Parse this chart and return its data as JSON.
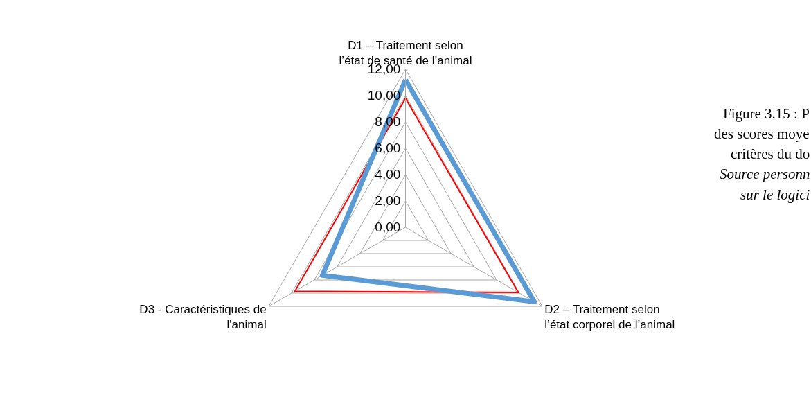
{
  "chart_data": {
    "type": "radar",
    "categories": [
      "D1 – Traitement selon\nl’état de santé de l’animal",
      "D2 – Traitement selon\nl’état corporel de l’animal",
      "D3 - Caractéristiques de\nl'animal"
    ],
    "series": [
      {
        "color": "#ff0000",
        "values": [
          9.8,
          9.9,
          9.7
        ]
      },
      {
        "color": "#5b9bd5",
        "values": [
          11.2,
          11.3,
          7.3
        ]
      }
    ],
    "ylim": [
      0,
      12
    ],
    "yticks": [
      {
        "value": 0,
        "label": "0,00"
      },
      {
        "value": 2,
        "label": "2,00"
      },
      {
        "value": 4,
        "label": "4,00"
      },
      {
        "value": 6,
        "label": "6,00"
      },
      {
        "value": 8,
        "label": "8,00"
      },
      {
        "value": 10,
        "label": "10,00"
      },
      {
        "value": 12,
        "label": "12,00"
      }
    ],
    "grid": true,
    "marker": "none",
    "line_style": "solid",
    "annotations": [
      "Figure 3.15 : P",
      "des scores moye",
      "critères du do",
      "Source personn",
      "sur le logici"
    ]
  }
}
